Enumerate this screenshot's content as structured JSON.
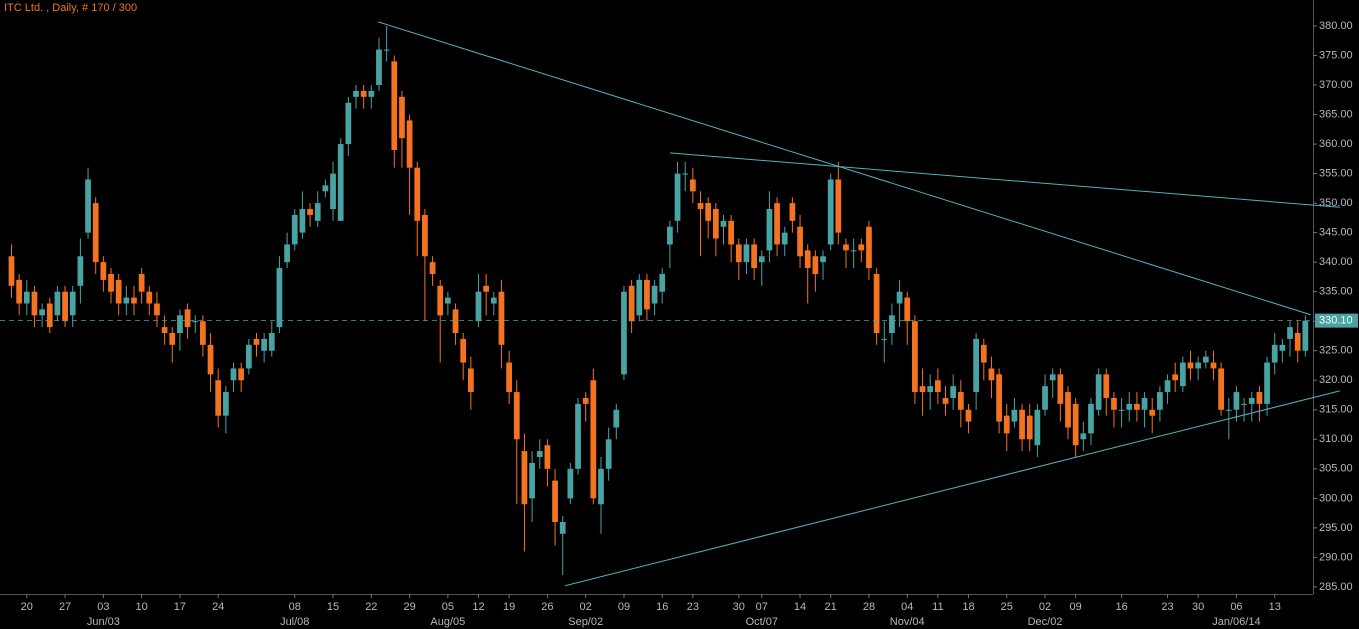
{
  "chart_data": {
    "type": "candlestick",
    "title": "ITC Ltd. , Daily, # 170 / 300",
    "up_color": "#4aa3a3",
    "down_color": "#f47320",
    "trendline_color": "#4fb3c0",
    "title_color": "#f47320",
    "xlim": [
      -1.5,
      170
    ],
    "ylim": [
      283.8,
      384.4
    ],
    "yticks": [
      {
        "value": 285,
        "label": "285.00"
      },
      {
        "value": 290,
        "label": "290.00"
      },
      {
        "value": 295,
        "label": "295.00"
      },
      {
        "value": 300,
        "label": "300.00"
      },
      {
        "value": 305,
        "label": "305.00"
      },
      {
        "value": 310,
        "label": "310.00"
      },
      {
        "value": 315,
        "label": "315.00"
      },
      {
        "value": 320,
        "label": "320.00"
      },
      {
        "value": 325,
        "label": "325.00"
      },
      {
        "value": 330,
        "label": "330.00"
      },
      {
        "value": 335,
        "label": "335.00"
      },
      {
        "value": 340,
        "label": "340.00"
      },
      {
        "value": 345,
        "label": "345.00"
      },
      {
        "value": 350,
        "label": "350.00"
      },
      {
        "value": 355,
        "label": "355.00"
      },
      {
        "value": 360,
        "label": "360.00"
      },
      {
        "value": 365,
        "label": "365.00"
      },
      {
        "value": 370,
        "label": "370.00"
      },
      {
        "value": 375,
        "label": "375.00"
      },
      {
        "value": 380,
        "label": "380.00"
      }
    ],
    "xticks": [
      {
        "value": 2,
        "label": "20"
      },
      {
        "value": 7,
        "label": "27"
      },
      {
        "value": 12,
        "label": "03"
      },
      {
        "value": 17,
        "label": "10"
      },
      {
        "value": 22,
        "label": "17"
      },
      {
        "value": 27,
        "label": "24"
      },
      {
        "value": 37,
        "label": "08"
      },
      {
        "value": 42,
        "label": "15"
      },
      {
        "value": 47,
        "label": "22"
      },
      {
        "value": 52,
        "label": "29"
      },
      {
        "value": 57,
        "label": "05"
      },
      {
        "value": 61,
        "label": "12"
      },
      {
        "value": 65,
        "label": "19"
      },
      {
        "value": 70,
        "label": "26"
      },
      {
        "value": 75,
        "label": "02"
      },
      {
        "value": 80,
        "label": "09"
      },
      {
        "value": 85,
        "label": "16"
      },
      {
        "value": 89,
        "label": "23"
      },
      {
        "value": 95,
        "label": "30"
      },
      {
        "value": 98,
        "label": "07"
      },
      {
        "value": 103,
        "label": "14"
      },
      {
        "value": 107,
        "label": "21"
      },
      {
        "value": 112,
        "label": "28"
      },
      {
        "value": 117,
        "label": "04"
      },
      {
        "value": 121,
        "label": "11"
      },
      {
        "value": 125,
        "label": "18"
      },
      {
        "value": 130,
        "label": "25"
      },
      {
        "value": 135,
        "label": "02"
      },
      {
        "value": 139,
        "label": "09"
      },
      {
        "value": 145,
        "label": "16"
      },
      {
        "value": 151,
        "label": "23"
      },
      {
        "value": 155,
        "label": "30"
      },
      {
        "value": 160,
        "label": "06"
      },
      {
        "value": 165,
        "label": "13"
      }
    ],
    "month_labels": [
      {
        "value": 12,
        "label": "Jun/03"
      },
      {
        "value": 37,
        "label": "Jul/08"
      },
      {
        "value": 57,
        "label": "Aug/05"
      },
      {
        "value": 75,
        "label": "Sep/02"
      },
      {
        "value": 98,
        "label": "Oct/07"
      },
      {
        "value": 117,
        "label": "Nov/04"
      },
      {
        "value": 135,
        "label": "Dec/02"
      },
      {
        "value": 160,
        "label": "Jan/06/14"
      }
    ],
    "last_price": {
      "value": 330.1,
      "label": "330.10"
    },
    "open": [
      341,
      337,
      333,
      335,
      331,
      333,
      331,
      335,
      331,
      336,
      345,
      350,
      340,
      338,
      337,
      333,
      334,
      338,
      335,
      333,
      329,
      328,
      328,
      332,
      330,
      330,
      326,
      320,
      314,
      320,
      322,
      322,
      327,
      325,
      325,
      329,
      340,
      343,
      345,
      349,
      347,
      352,
      349,
      347,
      360,
      368,
      369,
      368,
      370,
      376,
      374,
      368,
      364,
      356,
      348,
      340,
      336,
      333,
      332,
      327,
      322,
      330,
      336,
      333,
      335,
      323,
      318,
      308,
      300,
      307,
      309,
      303,
      294,
      300,
      305,
      317,
      320,
      299,
      305,
      312,
      321,
      336,
      331,
      337,
      333,
      335,
      343,
      347,
      355,
      354,
      350,
      350,
      349,
      346,
      347,
      343,
      340,
      343,
      340,
      342,
      350,
      343,
      350,
      346,
      342,
      341,
      340,
      343,
      354,
      343,
      342,
      343,
      346,
      338,
      327,
      328,
      333,
      334,
      330,
      319,
      318,
      320,
      317,
      317,
      318,
      315,
      318,
      326,
      322,
      321,
      314,
      313,
      315,
      314,
      309,
      315,
      320,
      321,
      318,
      316,
      310,
      311,
      315,
      321,
      317,
      315,
      315,
      316,
      315,
      315,
      315,
      318,
      321,
      319,
      323,
      322,
      323,
      323,
      322,
      315,
      315,
      316,
      316,
      318,
      316,
      323,
      325,
      327,
      328,
      325
    ],
    "high": [
      343,
      338,
      337,
      336,
      333,
      334,
      336,
      336,
      336,
      344,
      356,
      351,
      341,
      339,
      338,
      336,
      336,
      339,
      336,
      335,
      331,
      329,
      332,
      333,
      331,
      331,
      328,
      322,
      319,
      323,
      323,
      327,
      328,
      328,
      330,
      341,
      345,
      349,
      352,
      350,
      352,
      354,
      357,
      361,
      368,
      370,
      370,
      370,
      378,
      380,
      375,
      369,
      365,
      357,
      349,
      341,
      337,
      335,
      333,
      328,
      324,
      338,
      338,
      335,
      337,
      325,
      320,
      311,
      308,
      310,
      310,
      305,
      297,
      306,
      317,
      318,
      322,
      307,
      312,
      316,
      336,
      337,
      338,
      338,
      337,
      339,
      347,
      357,
      357,
      356,
      352,
      351,
      350,
      348,
      348,
      344,
      344,
      344,
      342,
      352,
      351,
      346,
      351,
      348,
      343,
      342,
      342,
      355,
      357,
      344,
      344,
      344,
      347,
      339,
      330,
      333,
      337,
      335,
      331,
      322,
      321,
      322,
      319,
      321,
      320,
      316,
      328,
      327,
      324,
      322,
      316,
      317,
      316,
      316,
      316,
      321,
      322,
      322,
      319,
      317,
      313,
      317,
      322,
      322,
      318,
      317,
      318,
      318,
      318,
      317,
      319,
      321,
      323,
      324,
      325,
      324,
      325,
      325,
      323,
      317,
      319,
      317,
      318,
      319,
      324,
      328,
      327,
      330,
      330,
      331
    ],
    "low": [
      334,
      331,
      331,
      329,
      329,
      328,
      330,
      329,
      329,
      333,
      344,
      338,
      335,
      333,
      331,
      331,
      331,
      333,
      331,
      329,
      326,
      323,
      325,
      327,
      328,
      324,
      318,
      312,
      311,
      318,
      318,
      321,
      324,
      323,
      324,
      328,
      339,
      342,
      344,
      346,
      346,
      351,
      347,
      347,
      358,
      366,
      366,
      366,
      369,
      374,
      356,
      356,
      348,
      341,
      330,
      336,
      323,
      331,
      326,
      320,
      315,
      329,
      331,
      331,
      322,
      316,
      299,
      291,
      296,
      305,
      302,
      292,
      287,
      299,
      304,
      313,
      299,
      294,
      303,
      310,
      320,
      328,
      330,
      330,
      331,
      333,
      339,
      345,
      352,
      350,
      341,
      344,
      341,
      343,
      340,
      337,
      338,
      337,
      336,
      340,
      341,
      341,
      345,
      339,
      333,
      335,
      337,
      342,
      343,
      339,
      339,
      340,
      337,
      326,
      323,
      326,
      329,
      326,
      316,
      314,
      315,
      316,
      314,
      315,
      312,
      311,
      315,
      320,
      317,
      311,
      308,
      312,
      308,
      308,
      307,
      314,
      317,
      313,
      310,
      307,
      308,
      309,
      314,
      314,
      312,
      312,
      313,
      313,
      312,
      311,
      313,
      316,
      318,
      318,
      320,
      320,
      322,
      320,
      314,
      310,
      313,
      313,
      313,
      313,
      314,
      321,
      323,
      324,
      323,
      324
    ],
    "close": [
      336,
      333,
      335,
      331,
      332,
      329,
      335,
      330,
      335,
      341,
      354,
      340,
      337,
      335,
      333,
      334,
      333,
      335,
      333,
      331,
      328,
      326,
      331,
      329,
      330,
      326,
      321,
      314,
      318,
      322,
      320,
      326,
      326,
      327,
      328,
      339,
      343,
      348,
      349,
      348,
      350,
      353,
      355,
      360,
      367,
      369,
      368,
      369,
      376,
      376,
      359,
      361,
      356,
      347,
      341,
      338,
      331,
      334,
      328,
      323,
      318,
      335,
      335,
      334,
      326,
      318,
      310,
      299,
      306,
      308,
      305,
      296,
      296,
      305,
      316,
      316,
      300,
      305,
      310,
      315,
      335,
      330,
      337,
      332,
      336,
      338,
      346,
      355,
      355,
      352,
      349,
      347,
      344,
      347,
      343,
      340,
      343,
      339,
      341,
      349,
      343,
      345,
      347,
      341,
      339,
      338,
      341,
      354,
      345,
      342,
      342,
      342,
      339,
      328,
      327,
      331,
      335,
      330,
      318,
      318,
      319,
      318,
      316,
      319,
      315,
      313,
      327,
      323,
      320,
      313,
      311,
      315,
      310,
      310,
      315,
      319,
      321,
      316,
      312,
      309,
      311,
      316,
      321,
      317,
      315,
      315,
      316,
      315,
      317,
      314,
      318,
      320,
      320,
      323,
      322,
      323,
      324,
      322,
      315,
      315,
      318,
      316,
      317,
      316,
      323,
      326,
      326,
      329,
      325,
      330.1
    ],
    "trendlines": [
      {
        "x": [
          47.9,
          169.7
        ],
        "y": [
          380.7,
          331.1
        ]
      },
      {
        "x": [
          86,
          173.5
        ],
        "y": [
          358.5,
          349.3
        ]
      },
      {
        "x": [
          72.3,
          173.5
        ],
        "y": [
          285.2,
          318.2
        ]
      }
    ]
  }
}
